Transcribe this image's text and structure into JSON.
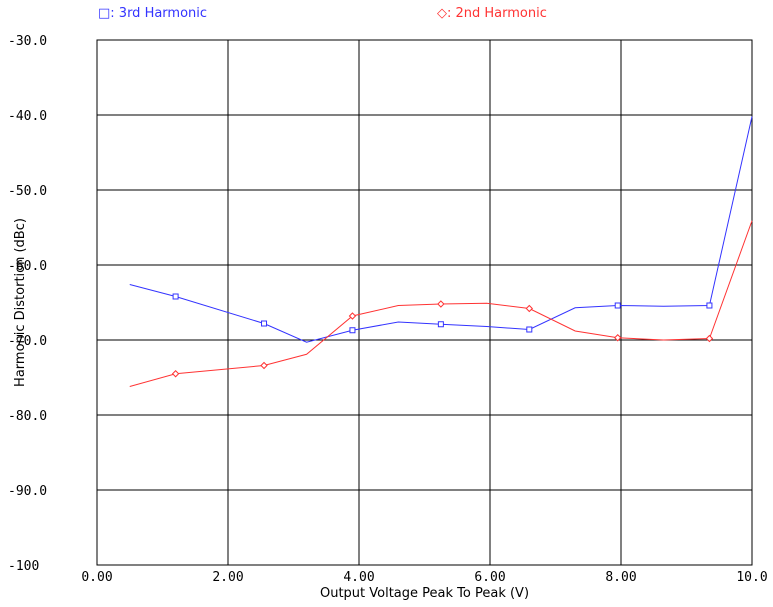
{
  "chart_data": {
    "type": "line",
    "xlabel": "Output Voltage Peak To Peak (V)",
    "ylabel": "Harmonic Distortion (dBc)",
    "xlim": [
      0,
      10
    ],
    "ylim": [
      -100,
      -30
    ],
    "x_ticks": [
      "0.00",
      "2.00",
      "4.00",
      "6.00",
      "8.00",
      "10.0"
    ],
    "y_ticks": [
      "-30.0",
      "-40.0",
      "-50.0",
      "-60.0",
      "-70.0",
      "-80.0",
      "-90.0",
      "-100"
    ],
    "grid": true,
    "legend_position": "top",
    "series": [
      {
        "name": "3rd Harmonic",
        "legend_label": "□: 3rd Harmonic",
        "color": "#3333ff",
        "marker": "square",
        "x": [
          0.5,
          1.2,
          2.55,
          3.2,
          3.9,
          4.6,
          5.25,
          5.95,
          6.6,
          7.3,
          7.95,
          8.65,
          9.35,
          10.0
        ],
        "y": [
          -62.6,
          -64.2,
          -67.8,
          -70.3,
          -68.7,
          -67.6,
          -67.9,
          -68.2,
          -68.6,
          -65.7,
          -65.4,
          -65.5,
          -65.4,
          -40.2
        ],
        "marked": [
          false,
          true,
          true,
          false,
          true,
          false,
          true,
          false,
          true,
          false,
          true,
          false,
          true,
          false
        ]
      },
      {
        "name": "2nd Harmonic",
        "legend_label": "◇: 2nd Harmonic",
        "color": "#ff3333",
        "marker": "diamond",
        "x": [
          0.5,
          1.2,
          2.55,
          3.2,
          3.9,
          4.6,
          5.25,
          5.95,
          6.6,
          7.3,
          7.95,
          8.65,
          9.35,
          10.0
        ],
        "y": [
          -76.2,
          -74.5,
          -73.4,
          -71.9,
          -66.8,
          -65.4,
          -65.2,
          -65.1,
          -65.8,
          -68.8,
          -69.7,
          -70.0,
          -69.8,
          -54.1
        ],
        "marked": [
          false,
          true,
          true,
          false,
          true,
          false,
          true,
          false,
          true,
          false,
          true,
          false,
          true,
          false
        ]
      }
    ]
  }
}
